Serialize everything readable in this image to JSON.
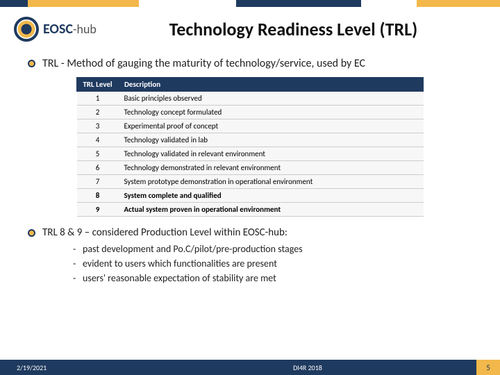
{
  "logo": {
    "brand": "EOSC",
    "suffix": "-hub"
  },
  "title": "Technology Readiness Level (TRL)",
  "intro": "TRL - Method of gauging the maturity of technology/service, used by EC",
  "table": {
    "headers": [
      "TRL Level",
      "Description"
    ],
    "rows": [
      {
        "level": "1",
        "desc": "Basic principles observed",
        "bold": false
      },
      {
        "level": "2",
        "desc": "Technology concept formulated",
        "bold": false
      },
      {
        "level": "3",
        "desc": "Experimental proof of concept",
        "bold": false
      },
      {
        "level": "4",
        "desc": "Technology validated in lab",
        "bold": false
      },
      {
        "level": "5",
        "desc": "Technology validated in relevant environment",
        "bold": false
      },
      {
        "level": "6",
        "desc": "Technology demonstrated in relevant environment",
        "bold": false
      },
      {
        "level": "7",
        "desc": "System prototype demonstration in operational environment",
        "bold": false
      },
      {
        "level": "8",
        "desc": "System complete and qualified",
        "bold": true
      },
      {
        "level": "9",
        "desc": "Actual system proven in operational environment",
        "bold": true
      }
    ]
  },
  "subhead": "TRL 8 & 9 – considered Production Level within EOSC-hub:",
  "subitems": [
    "past development and Po.C/pilot/pre-production stages",
    "evident to users which functionalities are present",
    "users' reasonable expectation of stability are met"
  ],
  "footer": {
    "date": "2/19/2021",
    "center": "DI4R 2018",
    "page": "5"
  },
  "colors": {
    "navy": "#1f3a5f",
    "gold": "#f2b84b"
  }
}
